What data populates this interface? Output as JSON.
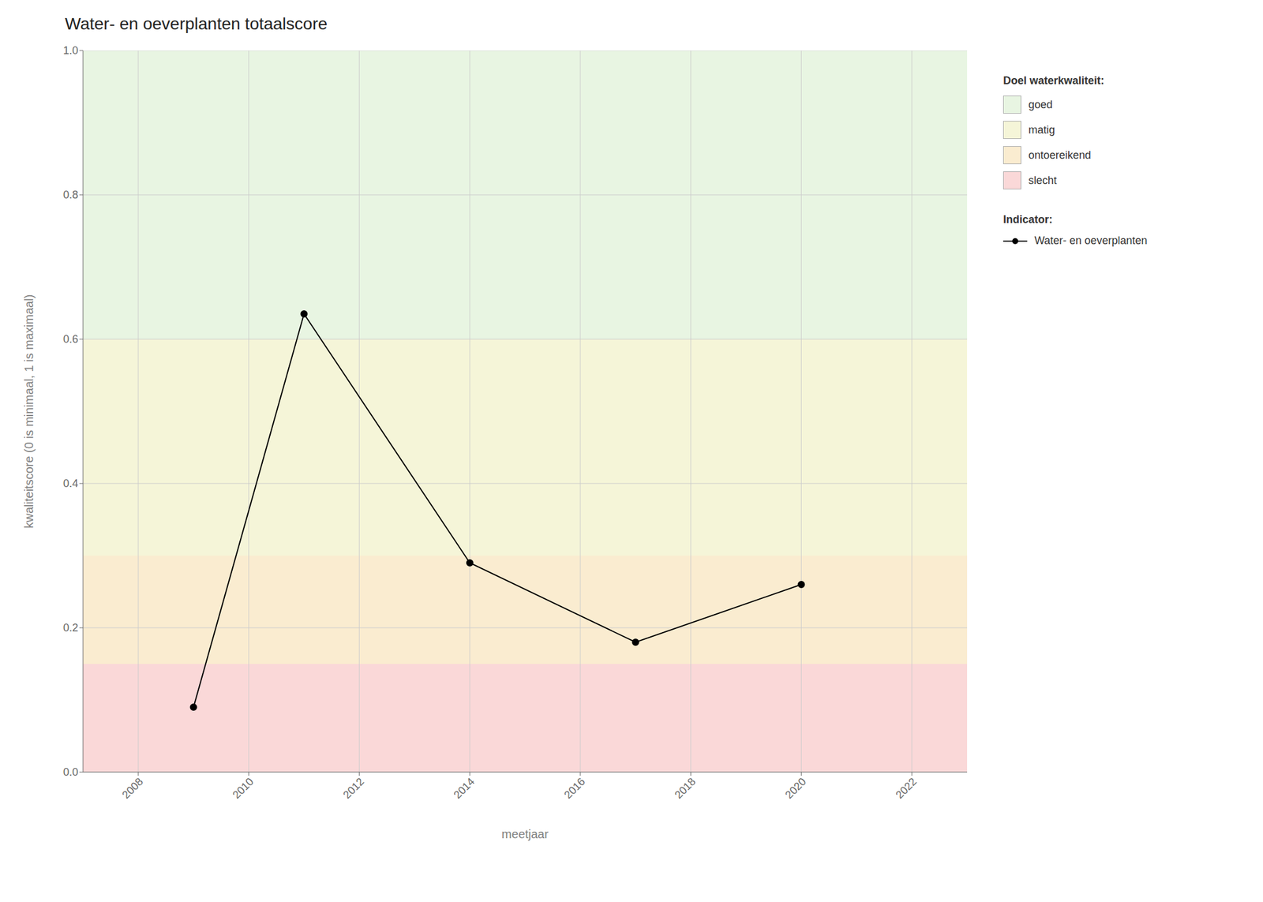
{
  "chart_data": {
    "type": "line",
    "title": "Water- en oeverplanten totaalscore",
    "xlabel": "meetjaar",
    "ylabel": "kwaliteitscore (0 is minimaal, 1 is maximaal)",
    "x": [
      2009,
      2011,
      2014,
      2017,
      2020
    ],
    "series": [
      {
        "name": "Water- en oeverplanten",
        "color": "#000000",
        "marker": "circle",
        "values": [
          0.09,
          0.635,
          0.29,
          0.18,
          0.26
        ]
      }
    ],
    "series_title": "Indicator:",
    "zones_title": "Doel waterkwaliteit:",
    "zones": [
      {
        "label": "goed",
        "ymin": 0.6,
        "ymax": 1.0,
        "color": "#e8f5e2"
      },
      {
        "label": "matig",
        "ymin": 0.3,
        "ymax": 0.6,
        "color": "#f5f5d8"
      },
      {
        "label": "ontoereikend",
        "ymin": 0.15,
        "ymax": 0.3,
        "color": "#faecd0"
      },
      {
        "label": "slecht",
        "ymin": 0.0,
        "ymax": 0.15,
        "color": "#fad8d8"
      }
    ],
    "xlim": [
      2007,
      2023
    ],
    "ylim": [
      0.0,
      1.0
    ],
    "xticks": [
      2008,
      2010,
      2012,
      2014,
      2016,
      2018,
      2020,
      2022
    ],
    "yticks": [
      {
        "value": 0.0,
        "label": "0.0"
      },
      0.2,
      0.4,
      0.6,
      0.8,
      {
        "value": 1.0,
        "label": "1.0"
      }
    ],
    "grid": true,
    "legend": "right"
  }
}
